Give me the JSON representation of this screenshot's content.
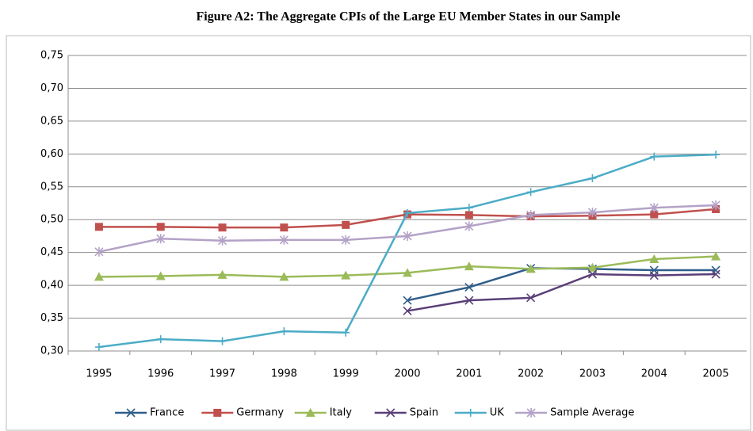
{
  "chart_data": {
    "type": "line",
    "title": "Figure A2: The Aggregate CPIs of the Large EU Member States in our Sample",
    "categories": [
      "1995",
      "1996",
      "1997",
      "1998",
      "1999",
      "2000",
      "2001",
      "2002",
      "2003",
      "2004",
      "2005"
    ],
    "series": [
      {
        "name": "France",
        "color": "#2f5d8a",
        "marker": "x",
        "values": [
          null,
          null,
          null,
          null,
          null,
          0.377,
          0.397,
          0.426,
          0.425,
          0.423,
          0.423
        ]
      },
      {
        "name": "Germany",
        "color": "#c0504d",
        "marker": "square",
        "values": [
          0.489,
          0.489,
          0.488,
          0.488,
          0.492,
          0.508,
          0.507,
          0.505,
          0.506,
          0.508,
          0.516
        ]
      },
      {
        "name": "Italy",
        "color": "#9bbb59",
        "marker": "triangle",
        "values": [
          0.413,
          0.414,
          0.416,
          0.413,
          0.415,
          0.419,
          0.429,
          0.425,
          0.427,
          0.44,
          0.444
        ]
      },
      {
        "name": "Spain",
        "color": "#5a3f78",
        "marker": "x",
        "values": [
          null,
          null,
          null,
          null,
          null,
          0.361,
          0.377,
          0.381,
          0.417,
          0.415,
          0.417
        ]
      },
      {
        "name": "UK",
        "color": "#4bacc6",
        "marker": "plus",
        "values": [
          0.306,
          0.318,
          0.315,
          0.33,
          0.328,
          0.51,
          0.518,
          0.542,
          0.563,
          0.596,
          0.599
        ]
      },
      {
        "name": "Sample Average",
        "color": "#b3a2c7",
        "marker": "star",
        "values": [
          0.451,
          0.471,
          0.468,
          0.469,
          0.469,
          0.475,
          0.49,
          0.507,
          0.511,
          0.518,
          0.522
        ]
      }
    ],
    "ylim": [
      0.3,
      0.75
    ],
    "yticks": [
      {
        "value": 0.3,
        "label": "0,30"
      },
      {
        "value": 0.35,
        "label": "0,35"
      },
      {
        "value": 0.4,
        "label": "0,40"
      },
      {
        "value": 0.45,
        "label": "0,45"
      },
      {
        "value": 0.5,
        "label": "0,50"
      },
      {
        "value": 0.55,
        "label": "0,55"
      },
      {
        "value": 0.6,
        "label": "0,60"
      },
      {
        "value": 0.65,
        "label": "0,65"
      },
      {
        "value": 0.7,
        "label": "0,70"
      },
      {
        "value": 0.75,
        "label": "0,75"
      }
    ],
    "grid": true,
    "legend": "bottom"
  }
}
